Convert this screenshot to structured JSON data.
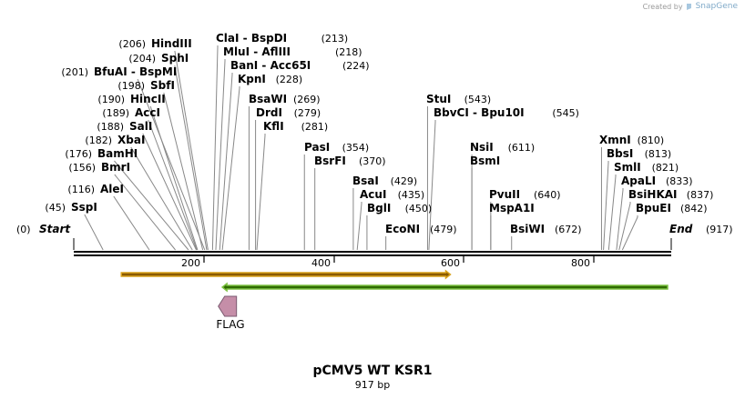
{
  "credit": {
    "prefix": "Created by",
    "brand": "SnapGene"
  },
  "plasmid": {
    "name": "pCMV5 WT KSR1",
    "length": 917,
    "length_label": "917 bp"
  },
  "axis": {
    "ticks": [
      "200",
      "400",
      "600",
      "800"
    ]
  },
  "ends": {
    "start_label": "Start",
    "start_pos": "(0)",
    "end_label": "End",
    "end_pos": "(917)"
  },
  "enzymes": [
    {
      "name": "SspI",
      "pos": "(45)",
      "site": 45
    },
    {
      "name": "AleI",
      "pos": "(116)",
      "site": 116
    },
    {
      "name": "BmrI",
      "pos": "(156)",
      "site": 156
    },
    {
      "name": "BamHI",
      "pos": "(176)",
      "site": 176
    },
    {
      "name": "XbaI",
      "pos": "(182)",
      "site": 182
    },
    {
      "name": "SalI",
      "pos": "(188)",
      "site": 188
    },
    {
      "name": "AccI",
      "pos": "(189)",
      "site": 189
    },
    {
      "name": "HincII",
      "pos": "(190)",
      "site": 190
    },
    {
      "name": "SbfI",
      "pos": "(198)",
      "site": 198
    },
    {
      "name": "BfuAI - BspMI",
      "pos": "(201)",
      "site": 201
    },
    {
      "name": "SphI",
      "pos": "(204)",
      "site": 204
    },
    {
      "name": "HindIII",
      "pos": "(206)",
      "site": 206
    },
    {
      "name": "ClaI - BspDI",
      "pos": "(213)",
      "site": 213
    },
    {
      "name": "MluI - AflIII",
      "pos": "(218)",
      "site": 218
    },
    {
      "name": "BanI - Acc65I",
      "pos": "(224)",
      "site": 224
    },
    {
      "name": "KpnI",
      "pos": "(228)",
      "site": 228
    },
    {
      "name": "BsaWI",
      "pos": "(269)",
      "site": 269
    },
    {
      "name": "DrdI",
      "pos": "(279)",
      "site": 279
    },
    {
      "name": "KflI",
      "pos": "(281)",
      "site": 281
    },
    {
      "name": "PasI",
      "pos": "(354)",
      "site": 354
    },
    {
      "name": "BsrFI",
      "pos": "(370)",
      "site": 370
    },
    {
      "name": "BsaI",
      "pos": "(429)",
      "site": 429
    },
    {
      "name": "AcuI",
      "pos": "(435)",
      "site": 435
    },
    {
      "name": "BglI",
      "pos": "(450)",
      "site": 450
    },
    {
      "name": "EcoNI",
      "pos": "(479)",
      "site": 479
    },
    {
      "name": "StuI",
      "pos": "(543)",
      "site": 543
    },
    {
      "name": "BbvCI - Bpu10I",
      "pos": "(545)",
      "site": 545
    },
    {
      "name": "NsiI",
      "pos": "(611)",
      "site": 611
    },
    {
      "name": "BsmI",
      "pos": "",
      "site": 611
    },
    {
      "name": "PvuII",
      "pos": "(640)",
      "site": 640
    },
    {
      "name": "MspA1I",
      "pos": "",
      "site": 640
    },
    {
      "name": "BsiWI",
      "pos": "(672)",
      "site": 672
    },
    {
      "name": "XmnI",
      "pos": "(810)",
      "site": 810
    },
    {
      "name": "BbsI",
      "pos": "(813)",
      "site": 813
    },
    {
      "name": "SmlI",
      "pos": "(821)",
      "site": 821
    },
    {
      "name": "ApaLI",
      "pos": "(833)",
      "site": 833
    },
    {
      "name": "BsiHKAI",
      "pos": "(837)",
      "site": 837
    },
    {
      "name": "BpuEI",
      "pos": "(842)",
      "site": 842
    }
  ],
  "features": {
    "orange": {
      "start": 73,
      "end": 578,
      "direction": "forward",
      "color": "#d9a21c"
    },
    "green": {
      "start": 228,
      "end": 917,
      "direction": "reverse",
      "color": "#7dc242"
    },
    "flag": {
      "label": "FLAG",
      "pos": 233,
      "direction": "reverse",
      "color": "#c58ea8"
    }
  }
}
